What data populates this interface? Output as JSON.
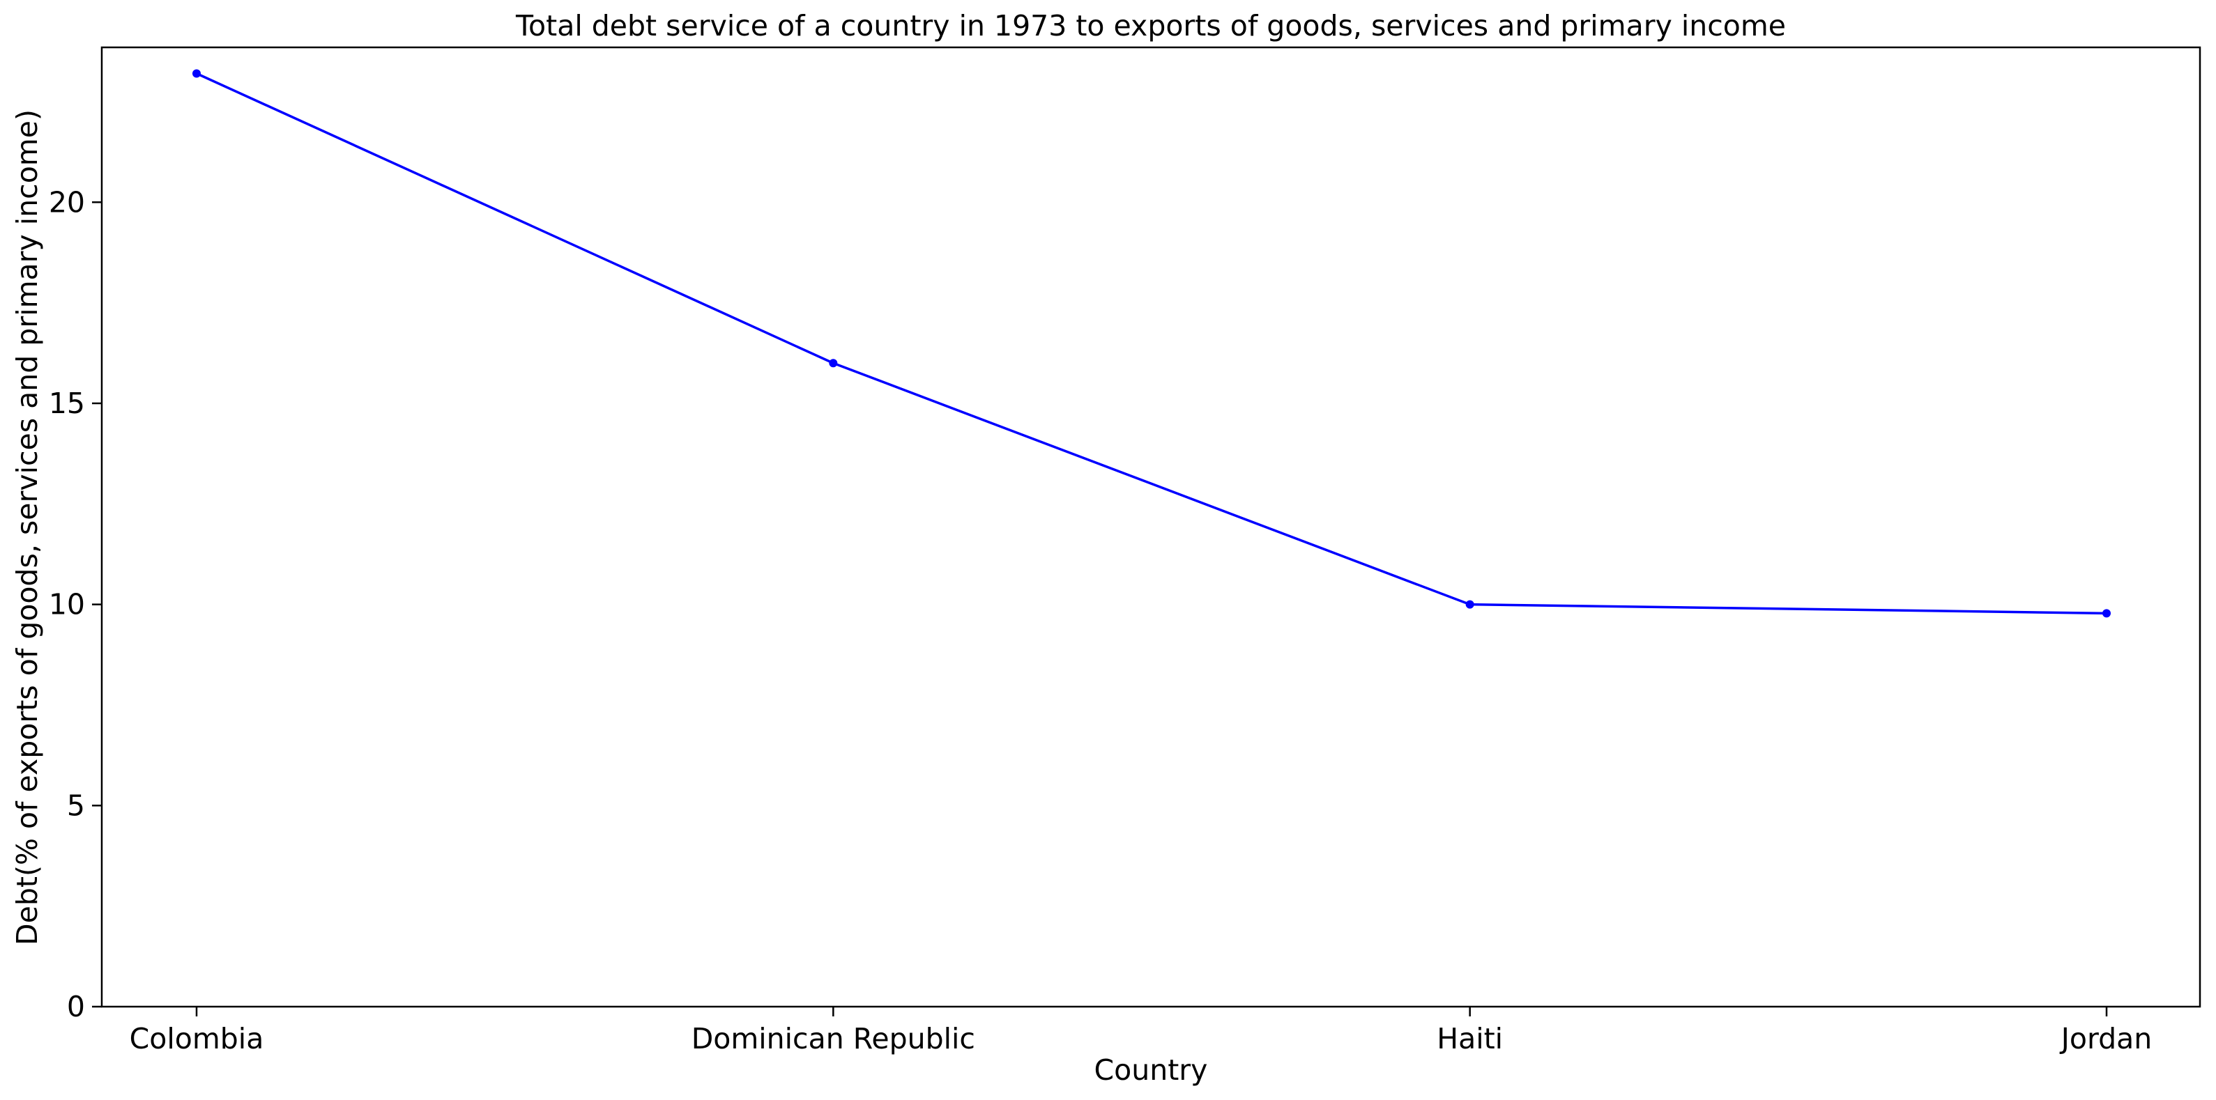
{
  "chart_data": {
    "type": "line",
    "title": "Total debt service of a country in 1973 to exports of goods, services and primary income",
    "xlabel": "Country",
    "ylabel": "Debt(% of exports of goods, services and primary income)",
    "categories": [
      "Colombia",
      "Dominican Republic",
      "Haiti",
      "Jordan"
    ],
    "series": [
      {
        "values": [
          23.2,
          16.0,
          10.0,
          9.78
        ],
        "color": "#0000ff"
      }
    ],
    "ylim": [
      0,
      23.85
    ],
    "yticks": [
      0,
      5,
      10,
      15,
      20
    ],
    "grid": false,
    "legend": "none"
  }
}
